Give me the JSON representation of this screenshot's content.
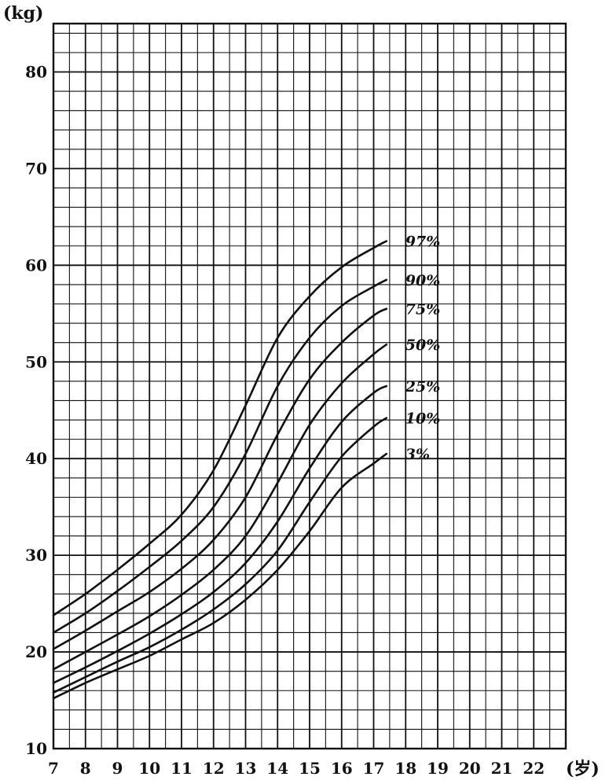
{
  "chart_data": {
    "type": "line",
    "title": "",
    "xlabel": "",
    "ylabel": "",
    "y_unit": "(kg)",
    "x_unit": "(岁)",
    "xlim": [
      7,
      23
    ],
    "ylim": [
      10,
      85
    ],
    "x_ticks": [
      7,
      8,
      9,
      10,
      11,
      12,
      13,
      14,
      15,
      16,
      17,
      18,
      19,
      20,
      21,
      22
    ],
    "y_ticks": [
      10,
      20,
      30,
      40,
      50,
      60,
      70,
      80
    ],
    "grid": true,
    "series": [
      {
        "name": "97%",
        "x": [
          7,
          8,
          9,
          10,
          11,
          12,
          13,
          14,
          15,
          16,
          17,
          17.4
        ],
        "y": [
          23.8,
          26.0,
          28.5,
          31.2,
          34.2,
          38.8,
          45.5,
          52.5,
          56.8,
          59.8,
          61.8,
          62.5
        ]
      },
      {
        "name": "90%",
        "x": [
          7,
          8,
          9,
          10,
          11,
          12,
          13,
          14,
          15,
          16,
          17,
          17.4
        ],
        "y": [
          22.0,
          24.0,
          26.3,
          28.8,
          31.5,
          35.0,
          40.5,
          47.5,
          52.5,
          55.8,
          57.8,
          58.5
        ]
      },
      {
        "name": "75%",
        "x": [
          7,
          8,
          9,
          10,
          11,
          12,
          13,
          14,
          15,
          16,
          17,
          17.4
        ],
        "y": [
          20.3,
          22.2,
          24.2,
          26.2,
          28.6,
          31.6,
          36.0,
          42.5,
          48.2,
          52.0,
          54.8,
          55.5
        ]
      },
      {
        "name": "50%",
        "x": [
          7,
          8,
          9,
          10,
          11,
          12,
          13,
          14,
          15,
          16,
          17,
          17.4
        ],
        "y": [
          18.2,
          20.0,
          21.8,
          23.7,
          25.9,
          28.5,
          32.0,
          37.5,
          43.5,
          47.8,
          50.8,
          51.8
        ]
      },
      {
        "name": "25%",
        "x": [
          7,
          8,
          9,
          10,
          11,
          12,
          13,
          14,
          15,
          16,
          17,
          17.4
        ],
        "y": [
          16.8,
          18.4,
          20.1,
          21.9,
          23.9,
          26.2,
          29.2,
          33.5,
          39.0,
          43.8,
          46.8,
          47.5
        ]
      },
      {
        "name": "10%",
        "x": [
          7,
          8,
          9,
          10,
          11,
          12,
          13,
          14,
          15,
          16,
          17,
          17.4
        ],
        "y": [
          15.8,
          17.4,
          19.0,
          20.5,
          22.3,
          24.4,
          27.0,
          30.5,
          35.5,
          40.2,
          43.3,
          44.2
        ]
      },
      {
        "name": "3%",
        "x": [
          7,
          8,
          9,
          10,
          11,
          12,
          13,
          14,
          15,
          16,
          17,
          17.4
        ],
        "y": [
          15.2,
          16.8,
          18.2,
          19.6,
          21.3,
          23.0,
          25.4,
          28.5,
          32.5,
          37.0,
          39.5,
          40.5
        ]
      }
    ]
  }
}
